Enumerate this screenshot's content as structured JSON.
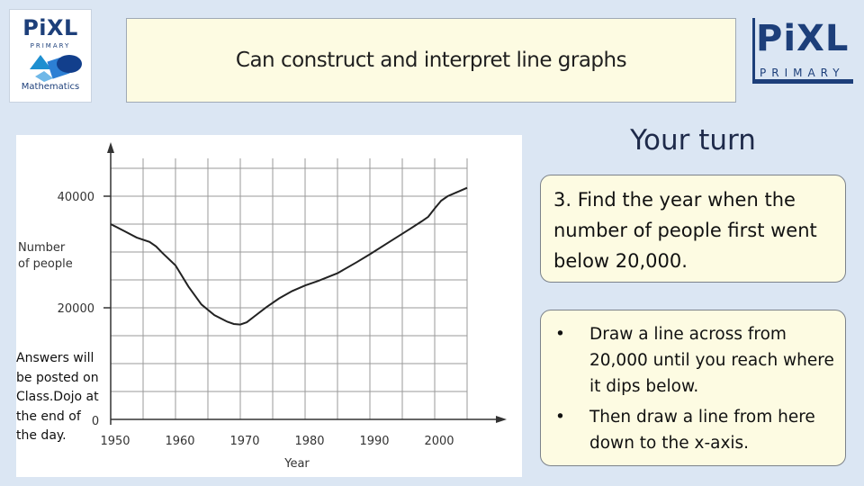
{
  "logos": {
    "left": {
      "brand": "PiXL",
      "sub": "PRIMARY",
      "caption": "Mathematics"
    },
    "right": {
      "brand": "PiXL",
      "sub": "PRIMARY"
    }
  },
  "title": "Can construct and interpret line graphs",
  "your_turn": "Your turn",
  "question": "3. Find the year when the number of people first went below 20,000.",
  "hints": [
    "Draw a line across from 20,000 until you reach where it dips below.",
    "Then draw a line from here down to the x-axis."
  ],
  "bullet_glyph": "•",
  "answers_note": "Answers will be posted on Class.Dojo at the end of the day.",
  "chart_data": {
    "type": "line",
    "xlabel": "Year",
    "ylabel": "Number of people",
    "x_ticks": [
      "1950",
      "1960",
      "1970",
      "1980",
      "1990",
      "2000"
    ],
    "y_ticks": [
      "20000",
      "40000"
    ],
    "origin_label": "0",
    "xlim": [
      1950,
      2005
    ],
    "ylim": [
      0,
      40000
    ],
    "grid": true,
    "series": [
      {
        "x": [
          1950,
          1952,
          1954,
          1956,
          1957,
          1958,
          1960,
          1962,
          1964,
          1966,
          1968,
          1969,
          1970,
          1971,
          1972,
          1974,
          1976,
          1978,
          1980,
          1982,
          1985,
          1988,
          1990,
          1993,
          1996,
          1998,
          1999,
          2000,
          2001,
          2002,
          2004,
          2005
        ],
        "y": [
          35000,
          33800,
          32600,
          31800,
          31000,
          29800,
          27600,
          23800,
          20600,
          18700,
          17500,
          17100,
          17000,
          17400,
          18300,
          20100,
          21700,
          23000,
          24000,
          24800,
          26200,
          28200,
          29600,
          31800,
          34000,
          35500,
          36300,
          37800,
          39200,
          40000,
          41000,
          41500
        ]
      }
    ]
  }
}
